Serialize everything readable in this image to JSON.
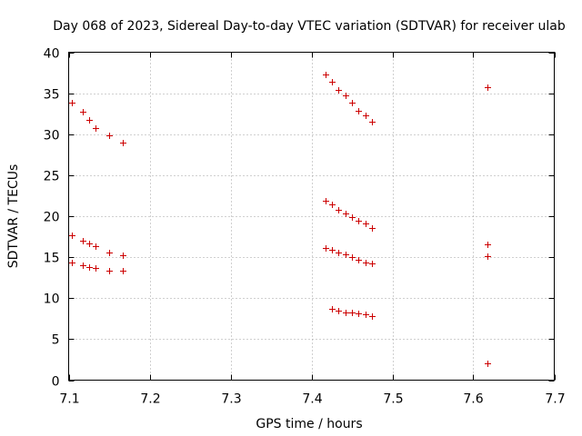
{
  "chart_data": {
    "type": "scatter",
    "title": "Day 068 of 2023, Sidereal Day-to-day VTEC variation (SDTVAR) for receiver ulab",
    "xlabel": "GPS time / hours",
    "ylabel": "SDTVAR / TECUs",
    "xlim": [
      7.1,
      7.7
    ],
    "ylim": [
      0,
      40
    ],
    "xticks": [
      "7.1",
      "7.2",
      "7.3",
      "7.4",
      "7.5",
      "7.6",
      "7.7"
    ],
    "yticks": [
      "0",
      "5",
      "10",
      "15",
      "20",
      "25",
      "30",
      "35",
      "40"
    ],
    "grid": true,
    "legend": "none",
    "marker": "+",
    "color": "#cc0000",
    "series": [
      {
        "name": "SDTVAR",
        "x": [
          7.104,
          7.117,
          7.125,
          7.133,
          7.15,
          7.167,
          7.104,
          7.117,
          7.125,
          7.133,
          7.15,
          7.167,
          7.104,
          7.117,
          7.125,
          7.133,
          7.15,
          7.167,
          7.417,
          7.425,
          7.433,
          7.442,
          7.45,
          7.458,
          7.467,
          7.475,
          7.417,
          7.425,
          7.433,
          7.442,
          7.45,
          7.458,
          7.467,
          7.475,
          7.417,
          7.425,
          7.433,
          7.442,
          7.45,
          7.458,
          7.467,
          7.475,
          7.425,
          7.433,
          7.442,
          7.45,
          7.458,
          7.467,
          7.475,
          7.617,
          7.617,
          7.617,
          7.617
        ],
        "y": [
          33.8,
          32.7,
          31.7,
          30.7,
          29.9,
          29.0,
          17.7,
          17.0,
          16.7,
          16.3,
          15.6,
          15.2,
          14.4,
          14.0,
          13.8,
          13.7,
          13.3,
          13.3,
          37.3,
          36.4,
          35.4,
          34.7,
          33.8,
          32.9,
          32.3,
          31.5,
          21.9,
          21.4,
          20.8,
          20.3,
          19.9,
          19.5,
          19.1,
          18.6,
          16.1,
          15.9,
          15.6,
          15.3,
          15.0,
          14.7,
          14.4,
          14.2,
          8.7,
          8.5,
          8.3,
          8.3,
          8.1,
          8.0,
          7.8,
          35.7,
          16.6,
          15.1,
          2.1
        ]
      }
    ]
  }
}
